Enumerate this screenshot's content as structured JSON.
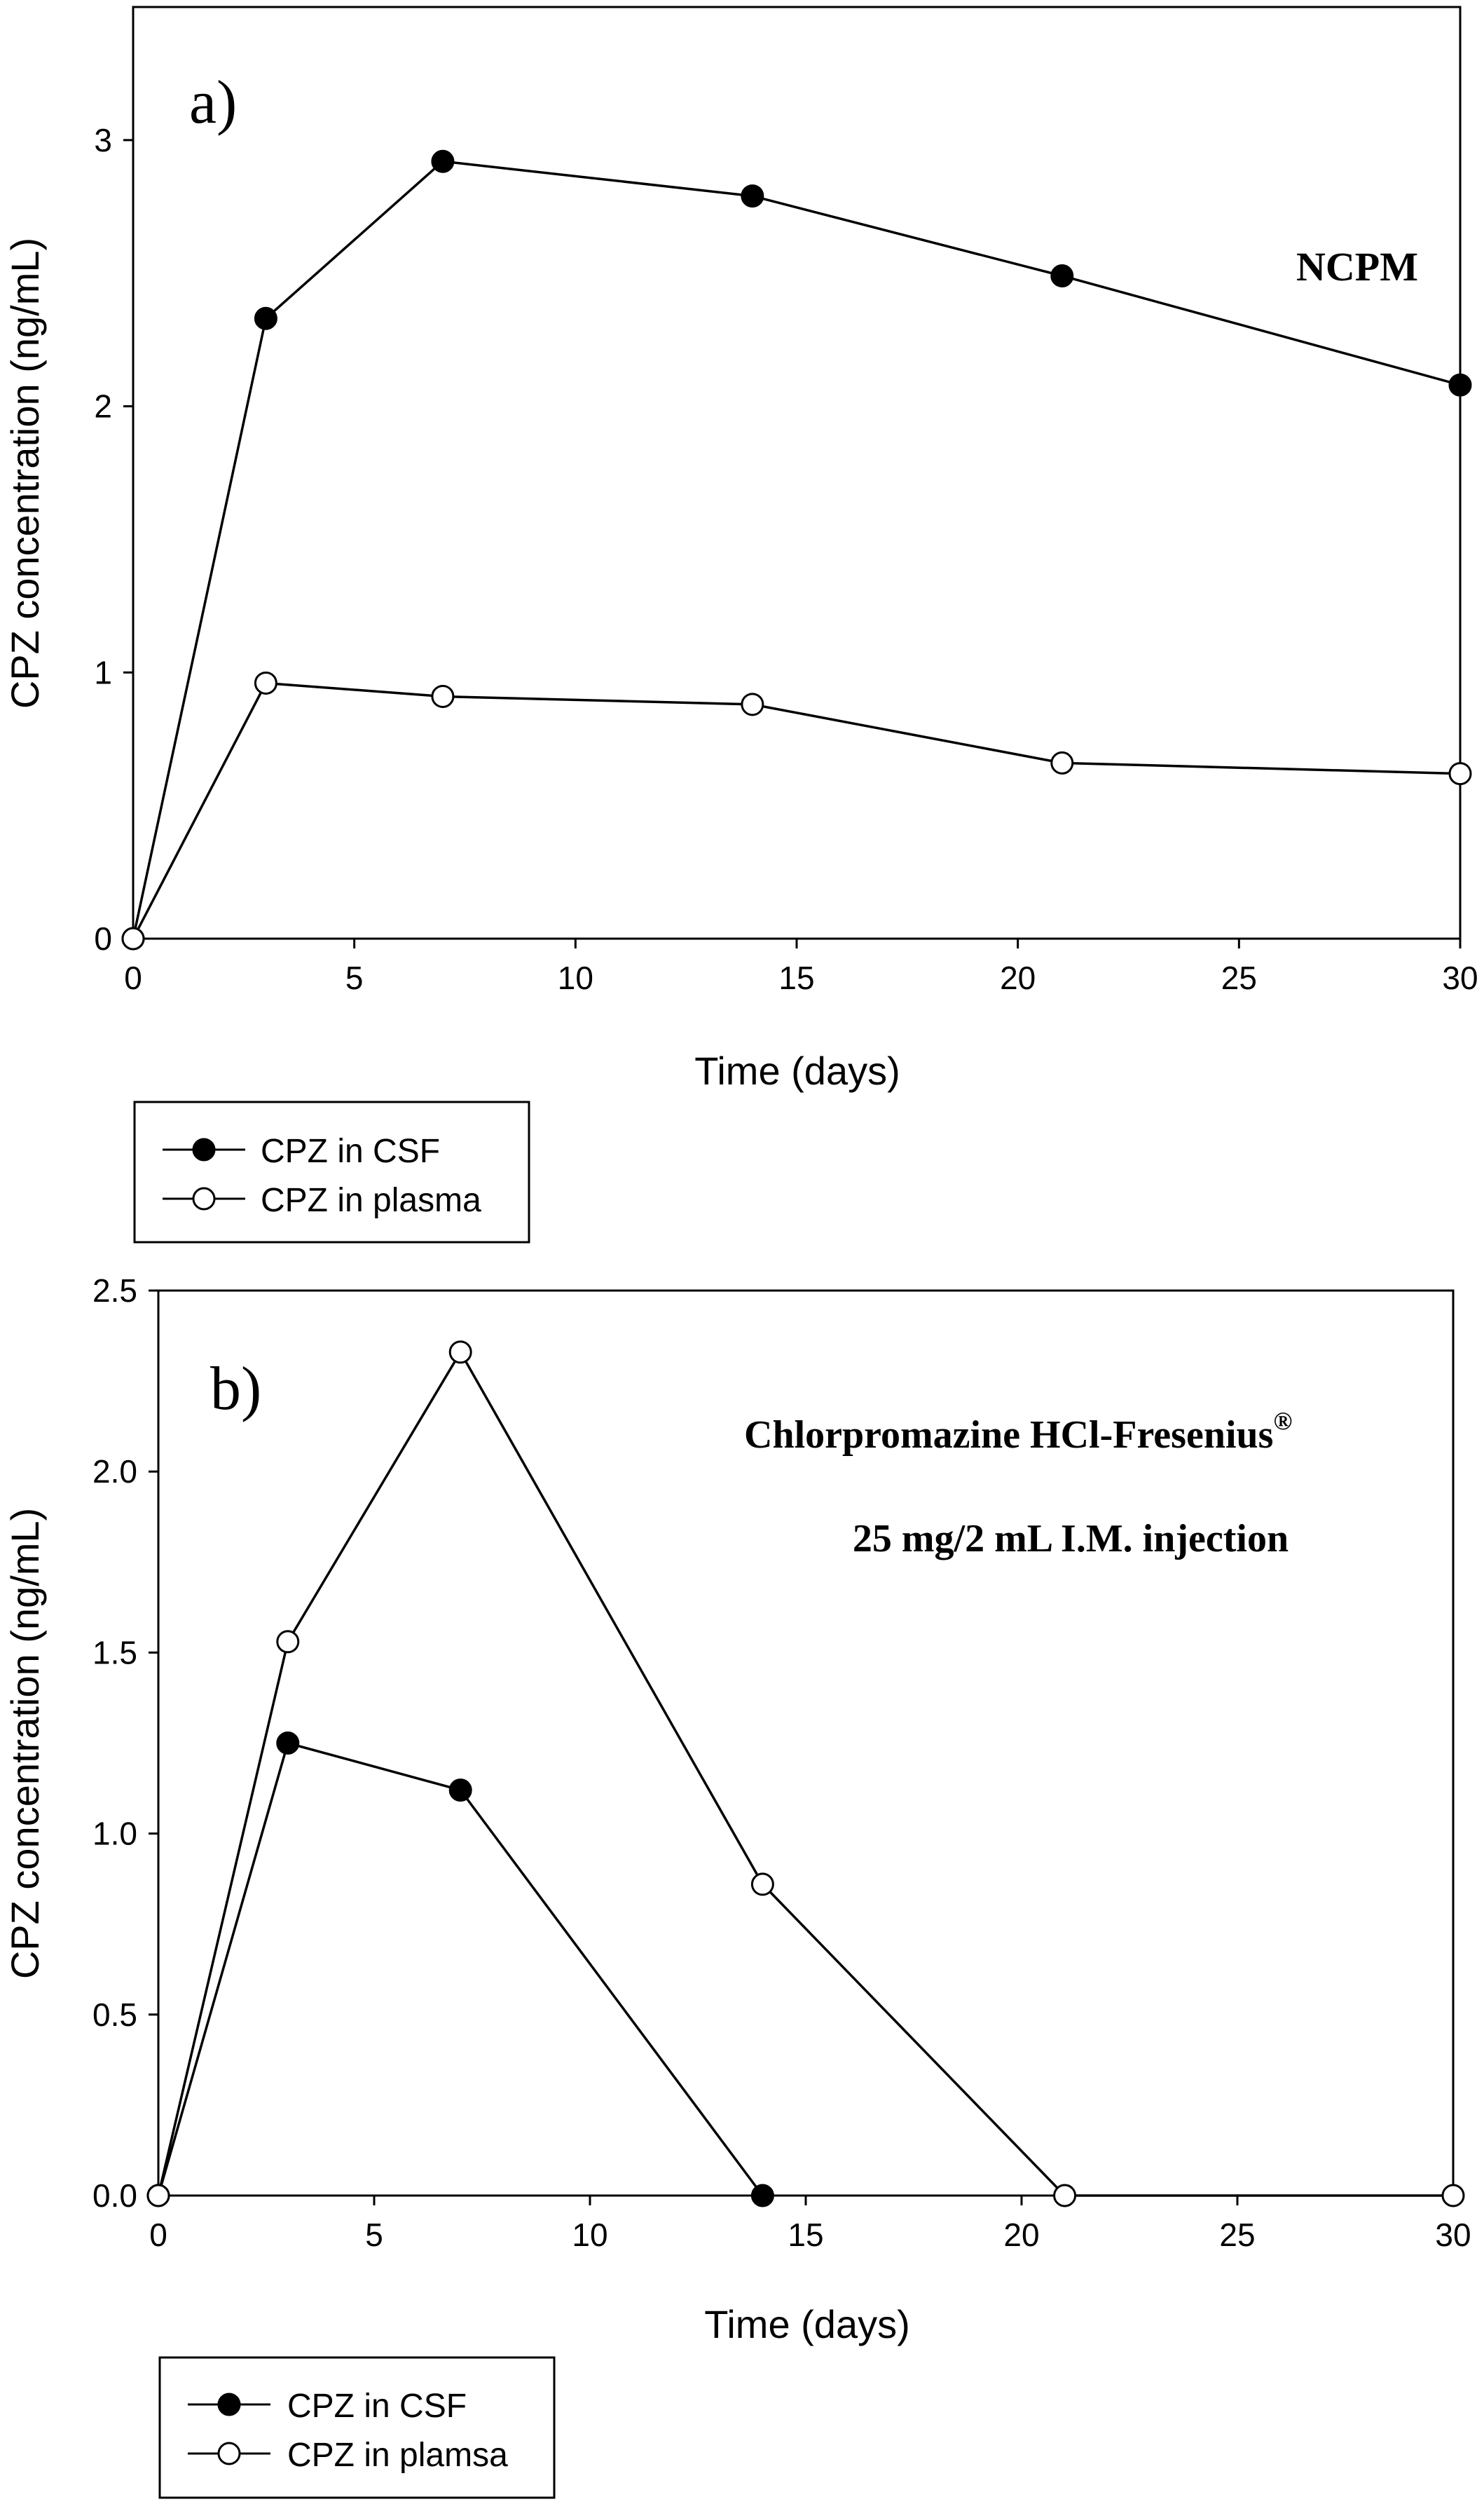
{
  "chart_data": [
    {
      "type": "line",
      "panel_label": "a)",
      "annotations": [
        "NCPM"
      ],
      "xlabel": "Time (days)",
      "ylabel": "CPZ concentration (ng/mL)",
      "xlim": [
        0,
        30
      ],
      "ylim": [
        0,
        3.5
      ],
      "xticks": [
        "0",
        "5",
        "10",
        "15",
        "20",
        "25",
        "30"
      ],
      "yticks": [
        "0",
        "1",
        "2",
        "3"
      ],
      "legend_position": "bottom-left-outside",
      "series": [
        {
          "name": "CPZ in CSF",
          "marker": "filled-circle",
          "x": [
            0,
            3,
            7,
            14,
            21,
            30
          ],
          "values": [
            0,
            2.33,
            2.92,
            2.79,
            2.49,
            2.08
          ]
        },
        {
          "name": "CPZ in plasma",
          "marker": "open-circle",
          "x": [
            0,
            3,
            7,
            14,
            21,
            30
          ],
          "values": [
            0,
            0.96,
            0.91,
            0.88,
            0.66,
            0.62
          ]
        }
      ]
    },
    {
      "type": "line",
      "panel_label": "b)",
      "annotations": [
        "Chlorpromazine HCl-Fresenius",
        "25 mg/2 mL I.M. injection"
      ],
      "annotation_superscript": "®",
      "xlabel": "Time (days)",
      "ylabel": "CPZ concentration (ng/mL)",
      "xlim": [
        0,
        30
      ],
      "ylim": [
        0,
        2.5
      ],
      "xticks": [
        "0",
        "5",
        "10",
        "15",
        "20",
        "25",
        "30"
      ],
      "yticks": [
        "0.0",
        "0.5",
        "1.0",
        "1.5",
        "2.0",
        "2.5"
      ],
      "legend_position": "bottom-left-outside",
      "series": [
        {
          "name": "CPZ in CSF",
          "marker": "filled-circle",
          "x": [
            0,
            3,
            7,
            14
          ],
          "values": [
            0,
            1.25,
            1.12,
            0
          ]
        },
        {
          "name": "CPZ in plamsa",
          "marker": "open-circle",
          "x": [
            0,
            3,
            7,
            14,
            21,
            30
          ],
          "values": [
            0,
            1.53,
            2.33,
            0.86,
            0,
            0
          ]
        }
      ]
    }
  ]
}
